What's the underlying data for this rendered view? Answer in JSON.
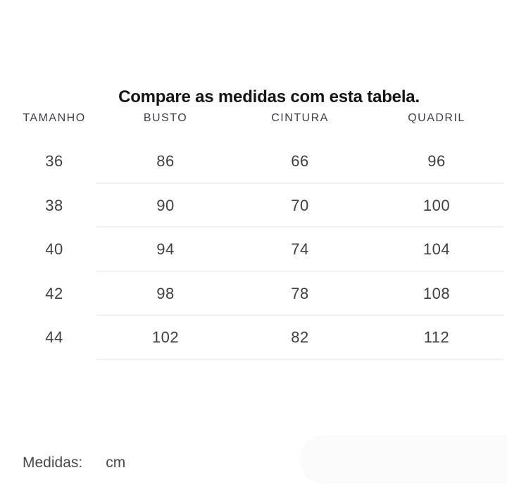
{
  "title": "Compare as medidas com esta tabela.",
  "table": {
    "columns": [
      "TAMANHO",
      "BUSTO",
      "CINTURA",
      "QUADRIL"
    ],
    "rows": [
      [
        "36",
        "86",
        "66",
        "96"
      ],
      [
        "38",
        "90",
        "70",
        "100"
      ],
      [
        "40",
        "94",
        "74",
        "104"
      ],
      [
        "42",
        "98",
        "78",
        "108"
      ],
      [
        "44",
        "102",
        "82",
        "112"
      ]
    ]
  },
  "footer": {
    "label": "Medidas:",
    "unit": "cm"
  },
  "colors": {
    "page_bg": "#ffffff",
    "title": "#151515",
    "header_text": "#3e3e47",
    "cell_text": "#3f3f44",
    "divider": "#f1f1f1",
    "footer_text": "#4a4a4a",
    "placeholder_pill": "#fbfbfb"
  }
}
